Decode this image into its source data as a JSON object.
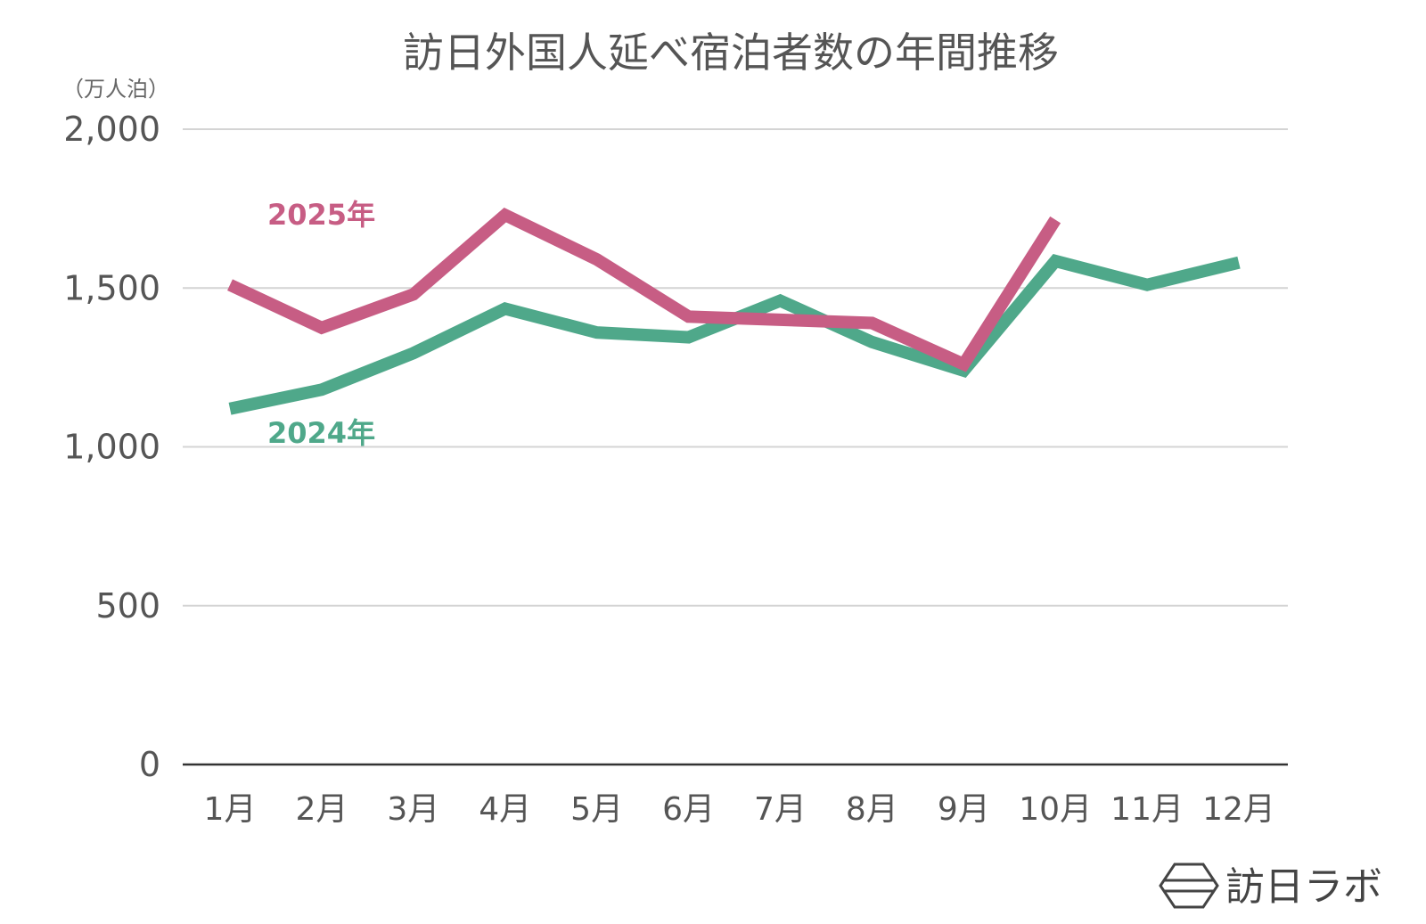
{
  "chart_data": {
    "type": "line",
    "title": "訪日外国人延べ宿泊者数の年間推移",
    "unit_label": "（万人泊）",
    "categories": [
      "1月",
      "2月",
      "3月",
      "4月",
      "5月",
      "6月",
      "7月",
      "8月",
      "9月",
      "10月",
      "11月",
      "12月"
    ],
    "ylim": [
      0,
      2000
    ],
    "yticks": [
      0,
      500,
      1000,
      1500,
      2000
    ],
    "ytick_labels": [
      "0",
      "500",
      "1,000",
      "1,500",
      "2,000"
    ],
    "grid": true,
    "series": [
      {
        "name": "2024年",
        "color": "#4fa88a",
        "values": [
          1120,
          1180,
          1295,
          1435,
          1360,
          1345,
          1460,
          1330,
          1240,
          1585,
          1510,
          1580
        ]
      },
      {
        "name": "2025年",
        "color": "#c75d84",
        "values": [
          1510,
          1375,
          1480,
          1730,
          1590,
          1410,
          1400,
          1390,
          1260,
          1715,
          null,
          null
        ]
      }
    ]
  },
  "brand": {
    "name": "訪日ラボ",
    "icon": "hexagon-logo-icon"
  }
}
